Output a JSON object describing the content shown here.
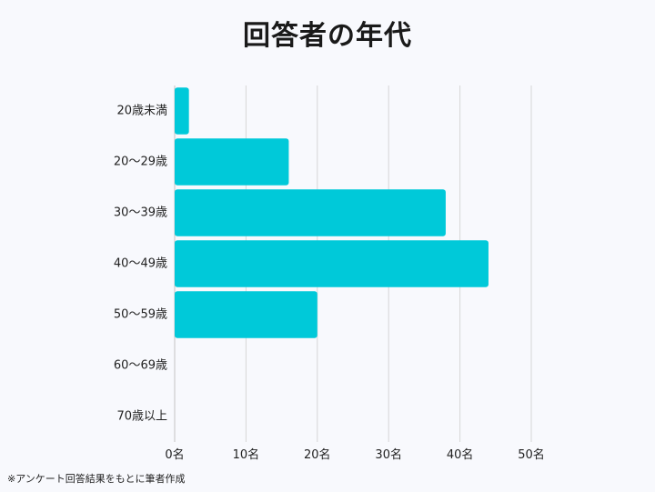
{
  "chart_data": {
    "type": "bar",
    "orientation": "horizontal",
    "title": "回答者の年代",
    "categories": [
      "20歳未満",
      "20〜29歳",
      "30〜39歳",
      "40〜49歳",
      "50〜59歳",
      "60〜69歳",
      "70歳以上"
    ],
    "values": [
      2,
      16,
      38,
      44,
      20,
      0,
      0
    ],
    "x_ticks": [
      "0名",
      "10名",
      "20名",
      "30名",
      "40名",
      "50名"
    ],
    "xlim": [
      0,
      50
    ],
    "grid": true,
    "bar_color": "#00c9d9"
  },
  "footnote": "※アンケート回答結果をもとに筆者作成"
}
